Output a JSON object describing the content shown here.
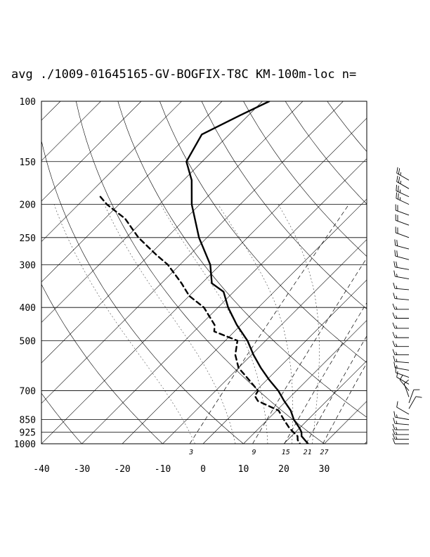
{
  "title": "avg ./1009-01645165-GV-BOGFIX-T8C KM-100m-loc n=",
  "chart_data": {
    "type": "skew-t",
    "title": "avg ./1009-01645165-GV-BOGFIX-T8C KM-100m-loc n=",
    "xlabel": "",
    "ylabel": "",
    "pressure_ticks": [
      100,
      150,
      200,
      250,
      300,
      400,
      500,
      700,
      850,
      925,
      1000
    ],
    "pressure_labels": [
      "100",
      "150",
      "200",
      "250",
      "300",
      "400",
      "500",
      "700",
      "850",
      "925",
      "1000"
    ],
    "temperature_ticks": [
      -40,
      -30,
      -20,
      -10,
      0,
      10,
      20,
      30
    ],
    "temperature_labels": [
      "-40",
      "-30",
      "-20",
      "-10",
      "0",
      "10",
      "20",
      "30"
    ],
    "mixing_ratio_labels": [
      "3",
      "9",
      "15",
      "21",
      "27"
    ],
    "ylim": [
      1000,
      100
    ],
    "xlim_at_1000hPa": [
      -40,
      40
    ],
    "series": [
      {
        "kind": "temperature",
        "style": "solid",
        "points": [
          {
            "p": 100,
            "t": -68.3
          },
          {
            "p": 110,
            "t": -72.1
          },
          {
            "p": 125,
            "t": -76.8
          },
          {
            "p": 150,
            "t": -73.9
          },
          {
            "p": 170,
            "t": -68.0
          },
          {
            "p": 200,
            "t": -62.0
          },
          {
            "p": 250,
            "t": -52.0
          },
          {
            "p": 300,
            "t": -42.5
          },
          {
            "p": 340,
            "t": -37.5
          },
          {
            "p": 360,
            "t": -32.5
          },
          {
            "p": 400,
            "t": -27.5
          },
          {
            "p": 450,
            "t": -21.0
          },
          {
            "p": 500,
            "t": -14.5
          },
          {
            "p": 550,
            "t": -9.5
          },
          {
            "p": 600,
            "t": -4.5
          },
          {
            "p": 650,
            "t": 0.5
          },
          {
            "p": 700,
            "t": 5.5
          },
          {
            "p": 750,
            "t": 9.5
          },
          {
            "p": 800,
            "t": 13.5
          },
          {
            "p": 850,
            "t": 16.5
          },
          {
            "p": 900,
            "t": 20.0
          },
          {
            "p": 925,
            "t": 21.5
          },
          {
            "p": 950,
            "t": 22.5
          },
          {
            "p": 1000,
            "t": 26.0
          }
        ]
      },
      {
        "kind": "dewpoint",
        "style": "dashed",
        "points": [
          {
            "p": 190,
            "t": -86.5
          },
          {
            "p": 200,
            "t": -83.0
          },
          {
            "p": 220,
            "t": -75.0
          },
          {
            "p": 250,
            "t": -67.0
          },
          {
            "p": 280,
            "t": -58.5
          },
          {
            "p": 300,
            "t": -53.0
          },
          {
            "p": 340,
            "t": -45.0
          },
          {
            "p": 370,
            "t": -40.0
          },
          {
            "p": 400,
            "t": -33.5
          },
          {
            "p": 450,
            "t": -26.5
          },
          {
            "p": 470,
            "t": -25.0
          },
          {
            "p": 500,
            "t": -17.0
          },
          {
            "p": 550,
            "t": -14.0
          },
          {
            "p": 600,
            "t": -10.0
          },
          {
            "p": 650,
            "t": -4.5
          },
          {
            "p": 700,
            "t": 0.5
          },
          {
            "p": 725,
            "t": 1.0
          },
          {
            "p": 750,
            "t": 3.0
          },
          {
            "p": 800,
            "t": 10.5
          },
          {
            "p": 850,
            "t": 14.0
          },
          {
            "p": 900,
            "t": 17.5
          },
          {
            "p": 925,
            "t": 19.5
          },
          {
            "p": 950,
            "t": 21.5
          },
          {
            "p": 975,
            "t": 22.5
          },
          {
            "p": 1000,
            "t": 24.0
          }
        ]
      }
    ],
    "wind_profile": {
      "shown": true,
      "speed_unit": "knots",
      "levels": [
        {
          "p": 170,
          "dir": 300,
          "spd": 25
        },
        {
          "p": 180,
          "dir": 300,
          "spd": 25
        },
        {
          "p": 190,
          "dir": 295,
          "spd": 25
        },
        {
          "p": 200,
          "dir": 295,
          "spd": 25
        },
        {
          "p": 215,
          "dir": 290,
          "spd": 20
        },
        {
          "p": 230,
          "dir": 290,
          "spd": 20
        },
        {
          "p": 250,
          "dir": 290,
          "spd": 20
        },
        {
          "p": 270,
          "dir": 285,
          "spd": 20
        },
        {
          "p": 290,
          "dir": 285,
          "spd": 20
        },
        {
          "p": 310,
          "dir": 280,
          "spd": 20
        },
        {
          "p": 330,
          "dir": 280,
          "spd": 15
        },
        {
          "p": 355,
          "dir": 275,
          "spd": 15
        },
        {
          "p": 380,
          "dir": 275,
          "spd": 15
        },
        {
          "p": 405,
          "dir": 270,
          "spd": 15
        },
        {
          "p": 430,
          "dir": 270,
          "spd": 15
        },
        {
          "p": 460,
          "dir": 270,
          "spd": 15
        },
        {
          "p": 490,
          "dir": 270,
          "spd": 15
        },
        {
          "p": 520,
          "dir": 270,
          "spd": 15
        },
        {
          "p": 550,
          "dir": 270,
          "spd": 15
        },
        {
          "p": 580,
          "dir": 275,
          "spd": 15
        },
        {
          "p": 610,
          "dir": 280,
          "spd": 15
        },
        {
          "p": 640,
          "dir": 290,
          "spd": 10
        },
        {
          "p": 670,
          "dir": 300,
          "spd": 10
        },
        {
          "p": 700,
          "dir": 320,
          "spd": 10
        },
        {
          "p": 730,
          "dir": 340,
          "spd": 10
        },
        {
          "p": 760,
          "dir": 20,
          "spd": 10
        },
        {
          "p": 790,
          "dir": 30,
          "spd": 10
        },
        {
          "p": 820,
          "dir": 300,
          "spd": 10
        },
        {
          "p": 850,
          "dir": 280,
          "spd": 15
        },
        {
          "p": 880,
          "dir": 275,
          "spd": 15
        },
        {
          "p": 910,
          "dir": 270,
          "spd": 15
        },
        {
          "p": 940,
          "dir": 270,
          "spd": 15
        },
        {
          "p": 970,
          "dir": 270,
          "spd": 15
        },
        {
          "p": 1000,
          "dir": 270,
          "spd": 10
        }
      ]
    },
    "grid": true,
    "legend": "none"
  }
}
